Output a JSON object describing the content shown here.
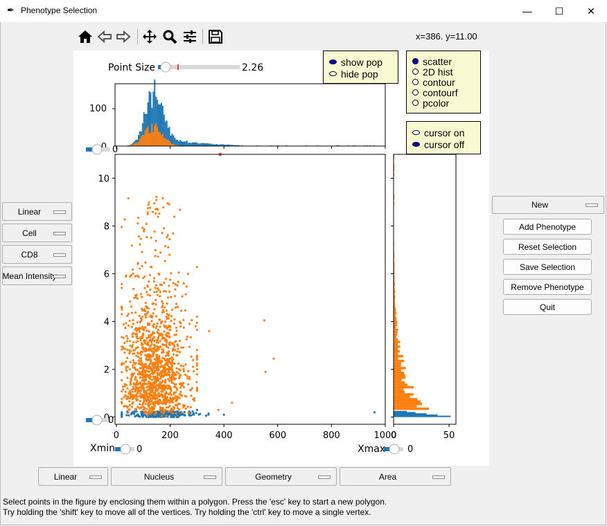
{
  "window": {
    "title": "Phenotype Selection",
    "minimize": "—",
    "maximize": "☐",
    "close": "✕"
  },
  "toolbar": {
    "icons": [
      "home-icon",
      "back-icon",
      "forward-icon",
      "move-icon",
      "zoom-icon",
      "configure-icon",
      "save-icon"
    ],
    "coordinates": "x=386. y=11.00"
  },
  "left_dropdowns": [
    "Linear",
    "Cell",
    "CD8",
    "Mean Intensity"
  ],
  "right_controls": {
    "phenotype_dropdown": "New",
    "buttons": [
      "Add Phenotype",
      "Reset Selection",
      "Save Selection",
      "Remove Phenotype",
      "Quit"
    ]
  },
  "bottom_dropdowns": [
    "Linear",
    "Nucleus",
    "Geometry",
    "Area"
  ],
  "pop_radio": {
    "options": [
      "show pop",
      "hide pop"
    ],
    "selected": "show pop"
  },
  "plot_radio": {
    "options": [
      "scatter",
      "2D hist",
      "contour",
      "contourf",
      "pcolor"
    ],
    "selected": "scatter"
  },
  "cursor_radio": {
    "options": [
      "cursor on",
      "cursor off"
    ],
    "selected": "cursor off"
  },
  "point_size": {
    "label": "Point Size",
    "value": "2.26",
    "fraction": 0.08
  },
  "xmin": {
    "label": "Xmin",
    "value": "0"
  },
  "xmax": {
    "label": "Xmax",
    "value": "0"
  },
  "left_sliders": {
    "top_value": "0",
    "bottom_value": "0"
  },
  "status_lines": [
    "Select points in the figure by enclosing them within a polygon. Press the 'esc' key to start a new polygon.",
    "Try holding the 'shift' key to move all of the vertices. Try holding the 'ctrl' key to move a single vertex."
  ],
  "colors": {
    "blue": "#1f77b4",
    "orange": "#ff7f0e",
    "radio_bg": "#fafad2",
    "slider": "#1f77b4"
  },
  "chart_data": [
    {
      "type": "scatter",
      "xlabel": "",
      "ylabel": "",
      "xlim": [
        0,
        1000
      ],
      "ylim": [
        0,
        11
      ],
      "x_ticks": [
        "0",
        "200",
        "400",
        "600",
        "800",
        "1000"
      ],
      "y_ticks": [
        "0",
        "2",
        "4",
        "6",
        "8",
        "10"
      ],
      "series": [
        {
          "color": "#1f77b4",
          "note_points": [
            [
              170,
              0.2
            ],
            [
              250,
              0.1
            ],
            [
              300,
              0.3
            ],
            [
              400,
              0.1
            ],
            [
              960,
              0.2
            ]
          ]
        },
        {
          "color": "#ff7f0e",
          "outliers": [
            [
              550,
              4.05
            ],
            [
              585,
              2.45
            ],
            [
              555,
              1.9
            ],
            [
              345,
              3.6
            ],
            [
              430,
              0.6
            ],
            [
              380,
              0.3
            ]
          ]
        }
      ],
      "selected_point": [
        386,
        11.0
      ]
    },
    {
      "type": "bar",
      "x_ticks": [],
      "y_ticks": [
        "0",
        "100"
      ],
      "ylim": [
        0,
        150
      ]
    },
    {
      "type": "bar",
      "x_ticks": [
        "0",
        "50"
      ],
      "xlim": [
        0,
        55
      ]
    }
  ]
}
